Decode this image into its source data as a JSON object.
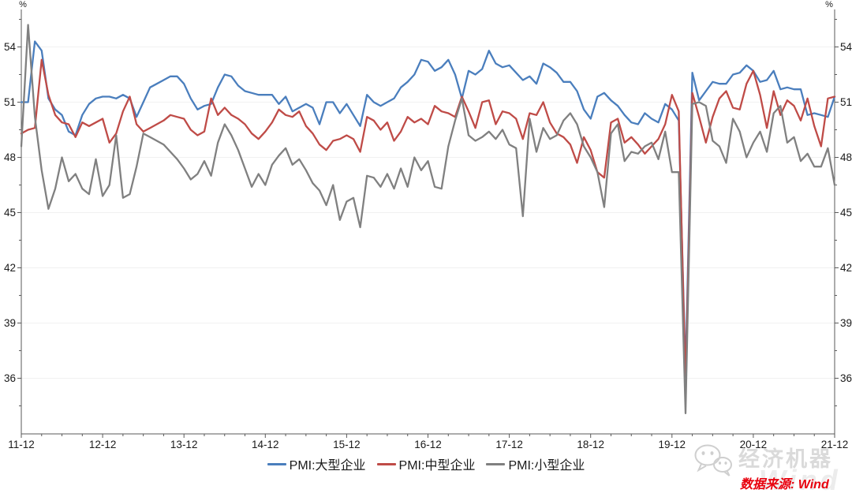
{
  "chart_data": {
    "type": "line",
    "title": "",
    "unit_label": "%",
    "x_tick_labels": [
      "11-12",
      "12-12",
      "13-12",
      "14-12",
      "15-12",
      "16-12",
      "17-12",
      "18-12",
      "19-12",
      "20-12",
      "21-12"
    ],
    "x_start": "2011-12",
    "x_end": "2021-12",
    "x_months": 121,
    "y_ticks": [
      36,
      39,
      42,
      45,
      48,
      51,
      54
    ],
    "ylim": [
      33.0,
      55.9
    ],
    "grid": "horizontal-faint",
    "legend_position": "bottom-center",
    "axis_color": "#595959",
    "grid_color": "#f1f1f1",
    "series": [
      {
        "name": "PMI:大型企业",
        "color": "#4a7ebd",
        "values": [
          51.0,
          51.0,
          54.3,
          53.8,
          51.2,
          50.6,
          50.3,
          49.4,
          49.2,
          50.3,
          50.9,
          51.2,
          51.3,
          51.3,
          51.2,
          51.4,
          51.2,
          50.2,
          51.0,
          51.8,
          52.0,
          52.2,
          52.4,
          52.4,
          52.0,
          51.2,
          50.6,
          50.8,
          50.9,
          51.8,
          52.5,
          52.4,
          51.9,
          51.6,
          51.5,
          51.4,
          51.4,
          51.4,
          50.9,
          51.3,
          50.5,
          50.7,
          50.9,
          50.7,
          49.8,
          51.0,
          51.0,
          50.4,
          50.9,
          50.3,
          49.7,
          51.4,
          51.0,
          50.8,
          51.0,
          51.2,
          51.8,
          52.1,
          52.5,
          53.3,
          53.2,
          52.7,
          52.9,
          53.3,
          52.5,
          51.2,
          52.7,
          52.5,
          52.8,
          53.8,
          53.1,
          52.9,
          53.0,
          52.6,
          52.2,
          52.4,
          52.0,
          53.1,
          52.9,
          52.6,
          52.1,
          52.1,
          51.6,
          50.6,
          50.1,
          51.3,
          51.5,
          51.1,
          50.8,
          50.3,
          49.9,
          49.8,
          50.4,
          50.1,
          49.9,
          50.9,
          50.6,
          50.0,
          36.3,
          52.6,
          51.1,
          51.6,
          52.1,
          52.0,
          52.0,
          52.5,
          52.6,
          53.0,
          52.7,
          52.1,
          52.2,
          52.7,
          51.7,
          51.8,
          51.7,
          51.7,
          50.3,
          50.4,
          50.3,
          50.2,
          51.3
        ]
      },
      {
        "name": "PMI:中型企业",
        "color": "#bf4b47",
        "values": [
          49.3,
          49.5,
          49.6,
          53.3,
          51.4,
          50.3,
          49.9,
          49.8,
          49.1,
          49.9,
          49.7,
          49.9,
          50.1,
          48.8,
          49.3,
          50.5,
          51.3,
          49.8,
          49.4,
          49.6,
          49.8,
          50.0,
          50.3,
          50.2,
          50.1,
          49.5,
          49.2,
          49.4,
          51.2,
          50.3,
          50.7,
          50.3,
          50.1,
          49.8,
          49.3,
          49.0,
          49.4,
          49.9,
          50.6,
          50.3,
          50.2,
          50.5,
          49.7,
          49.3,
          48.7,
          48.4,
          48.9,
          49.0,
          49.2,
          49.0,
          48.3,
          50.2,
          50.0,
          49.5,
          49.9,
          48.9,
          49.4,
          50.2,
          49.9,
          50.1,
          49.8,
          50.8,
          50.5,
          50.4,
          50.2,
          51.3,
          50.5,
          49.6,
          51.0,
          51.1,
          49.8,
          50.5,
          50.4,
          50.1,
          49.0,
          50.4,
          50.3,
          51.0,
          49.9,
          49.3,
          49.1,
          48.7,
          47.7,
          49.1,
          48.4,
          47.2,
          46.9,
          49.9,
          50.1,
          48.8,
          49.1,
          48.7,
          48.2,
          48.6,
          49.0,
          49.8,
          51.4,
          50.5,
          35.5,
          51.5,
          50.2,
          48.8,
          50.2,
          51.2,
          51.6,
          50.7,
          50.6,
          52.0,
          52.7,
          51.4,
          49.6,
          51.6,
          50.3,
          51.1,
          50.8,
          50.0,
          51.2,
          49.7,
          48.6,
          51.2,
          51.3
        ]
      },
      {
        "name": "PMI:小型企业",
        "color": "#808080",
        "values": [
          48.6,
          55.2,
          50.2,
          47.3,
          45.2,
          46.3,
          48.0,
          46.7,
          47.1,
          46.3,
          46.0,
          47.9,
          45.9,
          46.5,
          49.2,
          45.8,
          46.0,
          47.5,
          49.3,
          49.1,
          48.9,
          48.7,
          48.3,
          47.9,
          47.4,
          46.8,
          47.1,
          47.8,
          47.0,
          48.8,
          49.8,
          49.2,
          48.4,
          47.4,
          46.4,
          47.1,
          46.5,
          47.6,
          48.1,
          48.5,
          47.6,
          47.9,
          47.3,
          46.6,
          46.2,
          45.4,
          46.5,
          44.6,
          45.6,
          45.8,
          44.2,
          47.0,
          46.9,
          46.4,
          47.1,
          46.3,
          47.4,
          46.4,
          48.0,
          47.3,
          47.8,
          46.4,
          46.3,
          48.6,
          50.0,
          51.2,
          49.2,
          48.9,
          49.1,
          49.4,
          49.0,
          49.5,
          48.7,
          48.5,
          44.8,
          50.1,
          48.3,
          49.6,
          49.0,
          49.2,
          50.0,
          50.4,
          49.8,
          48.6,
          48.0,
          47.2,
          45.3,
          49.3,
          49.8,
          47.8,
          48.3,
          48.2,
          48.6,
          48.8,
          47.9,
          49.4,
          47.2,
          47.2,
          34.1,
          50.9,
          51.0,
          50.8,
          48.9,
          48.6,
          47.7,
          50.1,
          49.4,
          48.0,
          48.8,
          49.4,
          48.3,
          50.4,
          50.8,
          48.8,
          49.1,
          47.8,
          48.2,
          47.5,
          47.5,
          48.5,
          46.5
        ]
      }
    ]
  },
  "footer": {
    "source_label": "数据来源: Wind",
    "watermark_text": "经济机器",
    "watermark_ghost": "Wind"
  }
}
